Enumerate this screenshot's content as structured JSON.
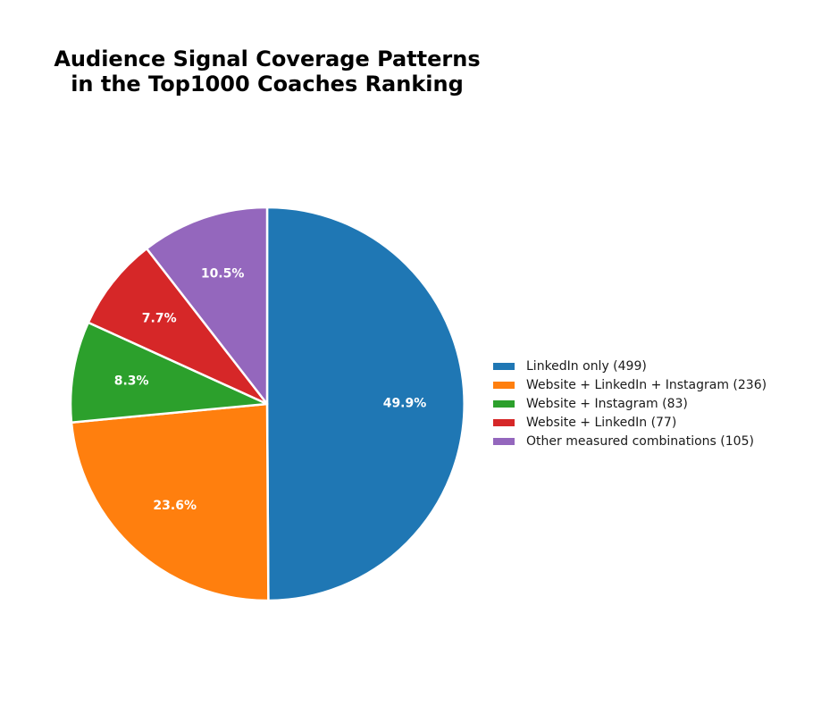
{
  "chart_data": {
    "type": "pie",
    "title": "Audience Signal Coverage Patterns\nin the Top1000 Coaches Ranking",
    "slices": [
      {
        "label": "LinkedIn only (499)",
        "value": 499,
        "percent_label": "49.9%",
        "color": "#1f77b4"
      },
      {
        "label": "Website + LinkedIn + Instagram (236)",
        "value": 236,
        "percent_label": "23.6%",
        "color": "#ff7f0e"
      },
      {
        "label": "Website + Instagram (83)",
        "value": 83,
        "percent_label": "8.3%",
        "color": "#2ca02c"
      },
      {
        "label": "Website + LinkedIn (77)",
        "value": 77,
        "percent_label": "7.7%",
        "color": "#d62728"
      },
      {
        "label": "Other measured combinations (105)",
        "value": 105,
        "percent_label": "10.5%",
        "color": "#9467bd"
      }
    ],
    "start_angle": "top (12 o'clock)",
    "direction": "clockwise",
    "legend_position": "right"
  }
}
